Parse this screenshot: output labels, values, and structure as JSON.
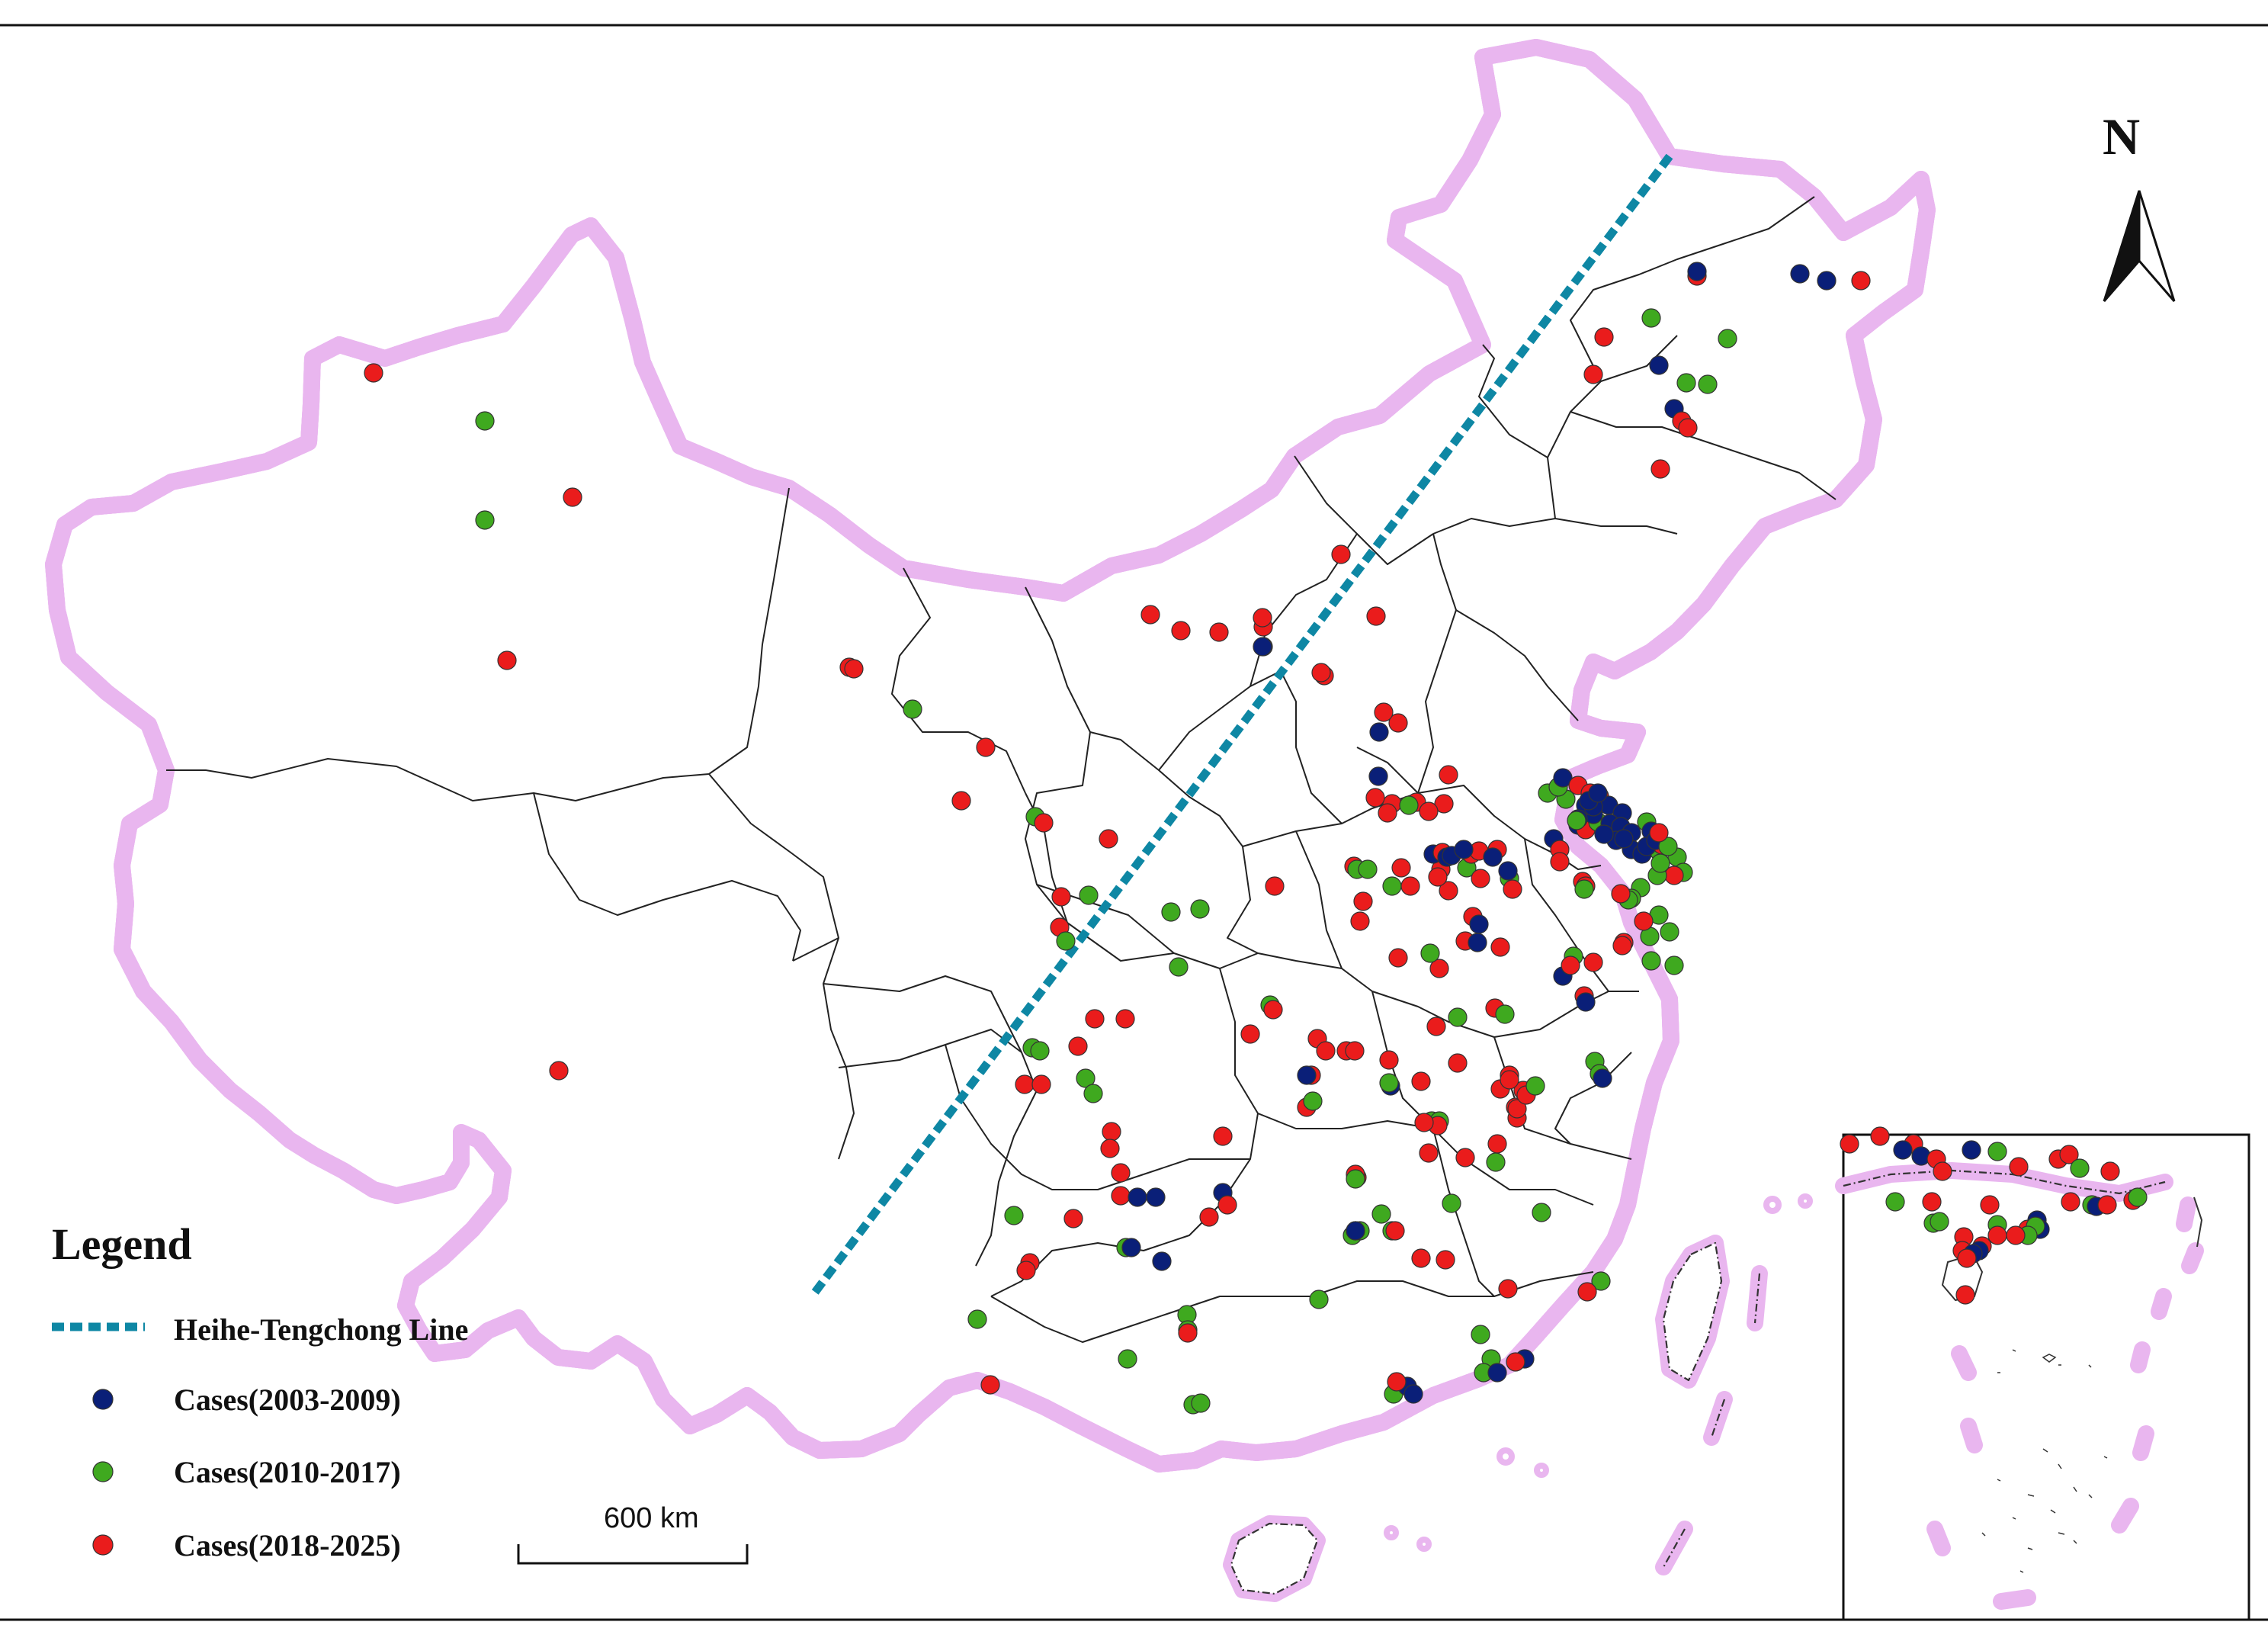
{
  "legend": {
    "title": "Legend",
    "items": [
      {
        "label": "Heihe-Tengchong Line",
        "color": "#0e87a4",
        "symbol": "dashed-line"
      },
      {
        "label": "Cases(2003-2009)",
        "color": "#0a1f78",
        "symbol": "dot"
      },
      {
        "label": "Cases(2010-2017)",
        "color": "#3fa91f",
        "symbol": "dot"
      },
      {
        "label": "Cases(2018-2025)",
        "color": "#ea1c1c",
        "symbol": "dot"
      }
    ]
  },
  "north_arrow": {
    "label": "N",
    "icon": "north-arrow-icon"
  },
  "scale_bar": {
    "label": "600 km"
  },
  "inset": {
    "name": "South China Sea"
  },
  "colors": {
    "border_glow": "#e9b6ef",
    "ht_line": "#0e87a4"
  }
}
